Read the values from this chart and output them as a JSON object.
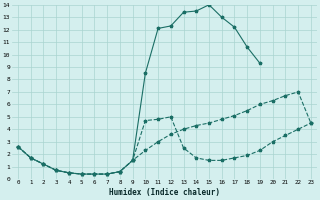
{
  "xlabel": "Humidex (Indice chaleur)",
  "background_color": "#d4efee",
  "grid_color": "#aad4d0",
  "line_color": "#1a6e65",
  "xlim": [
    -0.5,
    23.5
  ],
  "ylim": [
    0,
    14
  ],
  "xticks": [
    0,
    1,
    2,
    3,
    4,
    5,
    6,
    7,
    8,
    9,
    10,
    11,
    12,
    13,
    14,
    15,
    16,
    17,
    18,
    19,
    20,
    21,
    22,
    23
  ],
  "yticks": [
    0,
    1,
    2,
    3,
    4,
    5,
    6,
    7,
    8,
    9,
    10,
    11,
    12,
    13,
    14
  ],
  "line1_x": [
    0,
    1,
    2,
    3,
    4,
    5,
    6,
    7,
    8,
    9,
    10,
    11,
    12,
    13,
    14,
    15,
    16,
    17,
    18,
    19,
    20,
    21,
    22,
    23
  ],
  "line1_y": [
    2.6,
    1.7,
    1.2,
    0.7,
    0.5,
    0.4,
    0.4,
    0.4,
    0.6,
    1.5,
    8.5,
    12.1,
    12.3,
    13.4,
    13.5,
    14.0,
    13.0,
    12.2,
    10.6,
    9.3,
    null,
    null,
    null,
    null
  ],
  "line2_x": [
    0,
    1,
    2,
    3,
    4,
    5,
    6,
    7,
    8,
    9,
    10,
    11,
    12,
    13,
    14,
    15,
    16,
    17,
    18,
    19,
    20,
    21,
    22,
    23
  ],
  "line2_y": [
    2.6,
    1.7,
    1.2,
    0.7,
    0.5,
    0.4,
    0.4,
    0.4,
    0.6,
    1.5,
    2.3,
    3.0,
    3.6,
    4.0,
    4.3,
    4.5,
    4.8,
    5.1,
    5.5,
    6.0,
    6.3,
    6.7,
    7.0,
    4.5
  ],
  "line3_x": [
    0,
    1,
    2,
    3,
    4,
    5,
    6,
    7,
    8,
    9,
    10,
    11,
    12,
    13,
    14,
    15,
    16,
    17,
    18,
    19,
    20,
    21,
    22,
    23
  ],
  "line3_y": [
    2.6,
    1.7,
    1.2,
    0.7,
    0.5,
    0.4,
    0.4,
    0.4,
    0.6,
    1.5,
    4.7,
    4.8,
    5.0,
    2.5,
    1.7,
    1.5,
    1.5,
    1.7,
    1.9,
    2.3,
    3.0,
    3.5,
    4.0,
    4.5
  ]
}
